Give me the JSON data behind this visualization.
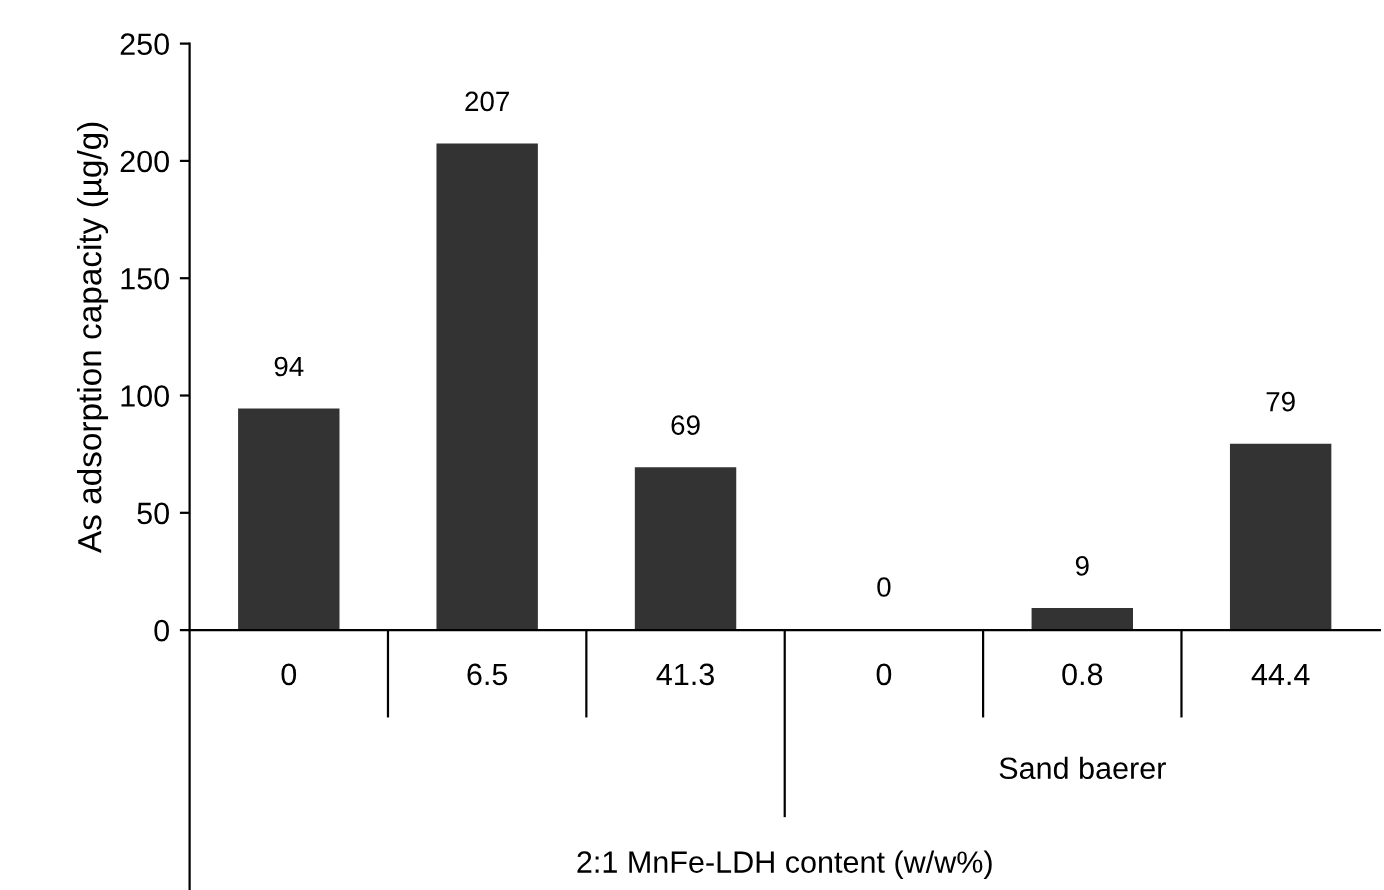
{
  "chart_data": {
    "type": "bar",
    "categories": [
      "0",
      "6.5",
      "41.3",
      "0",
      "0.8",
      "44.4"
    ],
    "values": [
      94,
      207,
      69,
      0,
      9,
      79
    ],
    "color": "#333333",
    "ylabel": "As adsorption capacity (µg/g)",
    "annotations": [
      "Sand baerer",
      "2:1 MnFe-LDH content (w/w%)"
    ],
    "ylim": [
      0,
      250
    ],
    "yticks": [
      0,
      50,
      100,
      150,
      200,
      250
    ],
    "data_labels": true,
    "grid": false,
    "legend": false
  }
}
